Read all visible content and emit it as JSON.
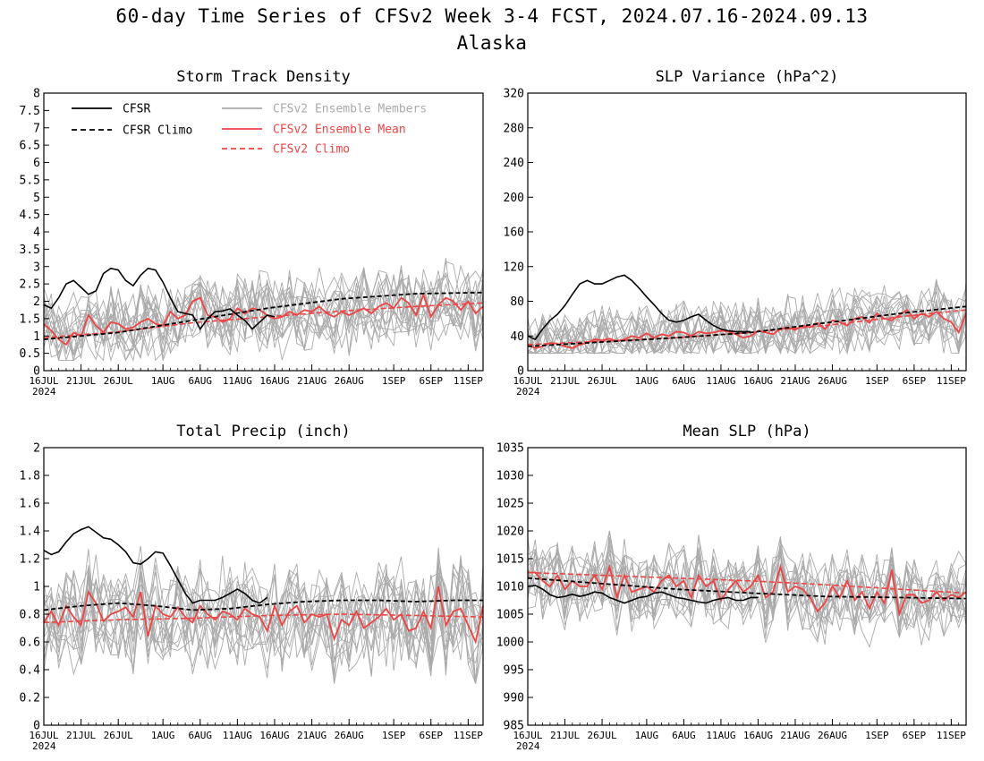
{
  "figure": {
    "title": "60-day Time Series of CFSv2 Week 3-4 FCST, 2024.07.16-2024.09.13",
    "subtitle": "Alaska"
  },
  "legend": [
    {
      "label": "CFSR",
      "color": "#000000",
      "dashed": false
    },
    {
      "label": "CFSR Climo",
      "color": "#000000",
      "dashed": true
    },
    {
      "label": "CFSv2 Ensemble Members",
      "color": "#aaaaaa",
      "dashed": false
    },
    {
      "label": "CFSv2 Ensemble Mean",
      "color": "#ee4444",
      "dashed": false
    },
    {
      "label": "CFSv2 Climo",
      "color": "#ee4444",
      "dashed": true
    }
  ],
  "x_axis": {
    "tick_days": [
      0,
      5,
      10,
      16,
      21,
      26,
      31,
      36,
      41,
      47,
      52,
      57
    ],
    "tick_labels": [
      "16JUL",
      "21JUL",
      "26JUL",
      "1AUG",
      "6AUG",
      "11AUG",
      "16AUG",
      "21AUG",
      "26AUG",
      "1SEP",
      "6SEP",
      "11SEP"
    ],
    "year_label": "2024"
  },
  "chart_data": [
    {
      "type": "line",
      "title": "Storm Track Density",
      "ylim": [
        0,
        8
      ],
      "yticks": [
        0,
        0.5,
        1,
        1.5,
        2,
        2.5,
        3,
        3.5,
        4,
        4.5,
        5,
        5.5,
        6,
        6.5,
        7,
        7.5,
        8
      ],
      "ytick_labels": [
        "0",
        "0.5",
        "1",
        "1.5",
        "2",
        "2.5",
        "3",
        "3.5",
        "4",
        "4.5",
        "5",
        "5.5",
        "6",
        "6.5",
        "7",
        "7.5",
        "8"
      ],
      "members_range": [
        0.3,
        3.6
      ],
      "series": [
        {
          "name": "CFSR",
          "x": [
            0,
            1,
            2,
            3,
            4,
            5,
            6,
            7,
            8,
            9,
            10,
            11,
            12,
            13,
            14,
            15,
            16,
            17,
            18,
            19,
            20,
            21,
            22,
            23,
            24,
            25,
            26,
            27,
            28,
            29,
            30,
            31
          ],
          "y": [
            1.9,
            1.8,
            2.1,
            2.5,
            2.6,
            2.4,
            2.2,
            2.3,
            2.8,
            2.95,
            2.9,
            2.6,
            2.45,
            2.75,
            2.95,
            2.9,
            2.55,
            2.1,
            1.7,
            1.65,
            1.6,
            1.2,
            1.5,
            1.7,
            1.72,
            1.78,
            1.6,
            1.45,
            1.2,
            1.4,
            1.6,
            1.55
          ]
        },
        {
          "name": "CFSR Climo",
          "x": [
            0,
            10,
            20,
            30,
            40,
            50,
            59
          ],
          "y": [
            0.9,
            1.1,
            1.45,
            1.8,
            2.07,
            2.22,
            2.25
          ]
        },
        {
          "name": "CFSv2 Ensemble Mean",
          "x": [
            0,
            1,
            2,
            3,
            4,
            5,
            6,
            7,
            8,
            9,
            10,
            11,
            12,
            13,
            14,
            15,
            16,
            17,
            18,
            19,
            20,
            21,
            22,
            23,
            24,
            25,
            26,
            27,
            28,
            29,
            30,
            31,
            32,
            33,
            34,
            35,
            36,
            37,
            38,
            39,
            40,
            41,
            42,
            43,
            44,
            45,
            46,
            47,
            48,
            49,
            50,
            51,
            52,
            53,
            54,
            55,
            56,
            57,
            58,
            59
          ],
          "y": [
            1.35,
            1.15,
            0.9,
            0.75,
            1.1,
            1.0,
            1.6,
            1.3,
            1.1,
            1.4,
            1.35,
            1.2,
            1.25,
            1.4,
            1.5,
            1.35,
            1.3,
            1.7,
            1.5,
            1.6,
            2.0,
            2.1,
            1.6,
            1.55,
            1.4,
            1.5,
            1.8,
            1.65,
            1.8,
            1.75,
            1.6,
            1.5,
            1.55,
            1.7,
            1.6,
            1.75,
            1.7,
            1.85,
            1.65,
            1.55,
            1.7,
            1.6,
            1.7,
            1.8,
            1.65,
            1.85,
            1.95,
            1.8,
            2.1,
            1.95,
            1.6,
            2.2,
            1.55,
            1.9,
            2.1,
            2.0,
            1.75,
            2.0,
            1.65,
            1.85
          ]
        },
        {
          "name": "CFSv2 Climo",
          "x": [
            0,
            10,
            20,
            30,
            40,
            50,
            59
          ],
          "y": [
            0.95,
            1.12,
            1.38,
            1.55,
            1.72,
            1.85,
            1.95
          ]
        }
      ]
    },
    {
      "type": "line",
      "title": "SLP Variance (hPa^2)",
      "ylim": [
        0,
        320
      ],
      "yticks": [
        0,
        40,
        80,
        120,
        160,
        200,
        240,
        280,
        320
      ],
      "ytick_labels": [
        "0",
        "40",
        "80",
        "120",
        "160",
        "200",
        "240",
        "280",
        "320"
      ],
      "members_range": [
        20,
        128
      ],
      "series": [
        {
          "name": "CFSR",
          "x": [
            0,
            1,
            2,
            3,
            4,
            5,
            6,
            7,
            8,
            9,
            10,
            11,
            12,
            13,
            14,
            15,
            16,
            17,
            18,
            19,
            20,
            21,
            22,
            23,
            24,
            25,
            26,
            27,
            28,
            29,
            30
          ],
          "y": [
            40,
            36,
            48,
            58,
            65,
            75,
            88,
            100,
            104,
            100,
            100,
            104,
            108,
            110,
            104,
            95,
            85,
            76,
            66,
            58,
            56,
            58,
            62,
            65,
            58,
            52,
            48,
            46,
            45,
            45,
            45
          ]
        },
        {
          "name": "CFSR Climo",
          "x": [
            0,
            10,
            20,
            30,
            40,
            50,
            59
          ],
          "y": [
            28,
            33,
            38,
            44,
            55,
            66,
            74
          ]
        },
        {
          "name": "CFSv2 Ensemble Mean",
          "x": [
            0,
            1,
            2,
            3,
            4,
            5,
            6,
            7,
            8,
            9,
            10,
            11,
            12,
            13,
            14,
            15,
            16,
            17,
            18,
            19,
            20,
            21,
            22,
            23,
            24,
            25,
            26,
            27,
            28,
            29,
            30,
            31,
            32,
            33,
            34,
            35,
            36,
            37,
            38,
            39,
            40,
            41,
            42,
            43,
            44,
            45,
            46,
            47,
            48,
            49,
            50,
            51,
            52,
            53,
            54,
            55,
            56,
            57,
            58,
            59
          ],
          "y": [
            30,
            26,
            28,
            32,
            31,
            28,
            26,
            30,
            32,
            36,
            35,
            37,
            34,
            36,
            40,
            38,
            43,
            38,
            42,
            40,
            45,
            44,
            40,
            45,
            43,
            44,
            46,
            45,
            42,
            38,
            40,
            46,
            44,
            42,
            48,
            50,
            47,
            52,
            50,
            55,
            48,
            58,
            56,
            52,
            60,
            62,
            55,
            66,
            60,
            58,
            64,
            70,
            60,
            66,
            62,
            68,
            60,
            56,
            44,
            66
          ]
        },
        {
          "name": "CFSv2 Climo",
          "x": [
            0,
            10,
            20,
            30,
            40,
            50,
            59
          ],
          "y": [
            30,
            34,
            38,
            44,
            52,
            62,
            70
          ]
        }
      ]
    },
    {
      "type": "line",
      "title": "Total Precip (inch)",
      "ylim": [
        0,
        2
      ],
      "yticks": [
        0,
        0.2,
        0.4,
        0.6,
        0.8,
        1,
        1.2,
        1.4,
        1.6,
        1.8,
        2
      ],
      "ytick_labels": [
        "0",
        "0.2",
        "0.4",
        "0.6",
        "0.8",
        "1",
        "1.2",
        "1.4",
        "1.6",
        "1.8",
        "2"
      ],
      "members_range": [
        0.3,
        1.38
      ],
      "series": [
        {
          "name": "CFSR",
          "x": [
            0,
            1,
            2,
            3,
            4,
            5,
            6,
            7,
            8,
            9,
            10,
            11,
            12,
            13,
            14,
            15,
            16,
            17,
            18,
            19,
            20,
            21,
            22,
            23,
            24,
            25,
            26,
            27,
            28,
            29,
            30
          ],
          "y": [
            1.26,
            1.23,
            1.25,
            1.32,
            1.38,
            1.41,
            1.43,
            1.39,
            1.35,
            1.34,
            1.3,
            1.25,
            1.17,
            1.16,
            1.2,
            1.25,
            1.24,
            1.15,
            1.05,
            0.95,
            0.88,
            0.9,
            0.9,
            0.9,
            0.92,
            0.95,
            0.98,
            0.95,
            0.9,
            0.88,
            0.92
          ]
        },
        {
          "name": "CFSR Climo",
          "x": [
            0,
            5,
            10,
            15,
            20,
            25,
            30,
            35,
            40,
            45,
            50,
            55,
            59
          ],
          "y": [
            0.83,
            0.86,
            0.88,
            0.86,
            0.83,
            0.84,
            0.87,
            0.89,
            0.9,
            0.9,
            0.89,
            0.9,
            0.9
          ]
        },
        {
          "name": "CFSv2 Ensemble Mean",
          "x": [
            0,
            1,
            2,
            3,
            4,
            5,
            6,
            7,
            8,
            9,
            10,
            11,
            12,
            13,
            14,
            15,
            16,
            17,
            18,
            19,
            20,
            21,
            22,
            23,
            24,
            25,
            26,
            27,
            28,
            29,
            30,
            31,
            32,
            33,
            34,
            35,
            36,
            37,
            38,
            39,
            40,
            41,
            42,
            43,
            44,
            45,
            46,
            47,
            48,
            49,
            50,
            51,
            52,
            53,
            54,
            55,
            56,
            57,
            58,
            59
          ],
          "y": [
            0.74,
            0.82,
            0.72,
            0.86,
            0.78,
            0.72,
            0.96,
            0.88,
            0.75,
            0.8,
            0.82,
            0.85,
            0.78,
            0.96,
            0.64,
            0.86,
            0.8,
            0.78,
            0.85,
            0.78,
            0.74,
            0.86,
            0.8,
            0.76,
            0.82,
            0.8,
            0.76,
            0.84,
            0.8,
            0.78,
            0.68,
            0.86,
            0.72,
            0.82,
            0.86,
            0.74,
            0.8,
            0.78,
            0.8,
            0.62,
            0.76,
            0.72,
            0.82,
            0.7,
            0.74,
            0.78,
            0.84,
            0.76,
            0.8,
            0.68,
            0.7,
            0.82,
            0.7,
            1.0,
            0.72,
            0.82,
            0.84,
            0.72,
            0.6,
            0.86
          ]
        },
        {
          "name": "CFSv2 Climo",
          "x": [
            0,
            10,
            20,
            30,
            40,
            50,
            59
          ],
          "y": [
            0.74,
            0.76,
            0.77,
            0.79,
            0.8,
            0.79,
            0.78
          ]
        }
      ]
    },
    {
      "type": "line",
      "title": "Mean SLP (hPa)",
      "ylim": [
        985,
        1035
      ],
      "yticks": [
        985,
        990,
        995,
        1000,
        1005,
        1010,
        1015,
        1020,
        1025,
        1030,
        1035
      ],
      "ytick_labels": [
        "985",
        "990",
        "995",
        "1000",
        "1005",
        "1010",
        "1015",
        "1020",
        "1025",
        "1030",
        "1035"
      ],
      "members_range": [
        999,
        1020
      ],
      "series": [
        {
          "name": "CFSR",
          "x": [
            0,
            1,
            2,
            3,
            4,
            5,
            6,
            7,
            8,
            9,
            10,
            11,
            12,
            13,
            14,
            15,
            16,
            17,
            18,
            19,
            20,
            21,
            22,
            23,
            24,
            25,
            26,
            27,
            28,
            29,
            30,
            31
          ],
          "y": [
            1010,
            1010.2,
            1009.5,
            1008.5,
            1008,
            1008.2,
            1008.6,
            1008.2,
            1008.5,
            1009,
            1008.8,
            1008,
            1007.5,
            1007,
            1007.5,
            1008,
            1008.2,
            1008.8,
            1009,
            1008.5,
            1008,
            1007.8,
            1007.5,
            1007.2,
            1007,
            1007.5,
            1007.8,
            1008,
            1007.5,
            1007.5,
            1008,
            1008
          ]
        },
        {
          "name": "CFSR Climo",
          "x": [
            0,
            10,
            20,
            30,
            40,
            50,
            59
          ],
          "y": [
            1011.5,
            1010.5,
            1009.5,
            1008.8,
            1008.2,
            1008,
            1007.8
          ]
        },
        {
          "name": "CFSv2 Ensemble Mean",
          "x": [
            0,
            1,
            2,
            3,
            4,
            5,
            6,
            7,
            8,
            9,
            10,
            11,
            12,
            13,
            14,
            15,
            16,
            17,
            18,
            19,
            20,
            21,
            22,
            23,
            24,
            25,
            26,
            27,
            28,
            29,
            30,
            31,
            32,
            33,
            34,
            35,
            36,
            37,
            38,
            39,
            40,
            41,
            42,
            43,
            44,
            45,
            46,
            47,
            48,
            49,
            50,
            51,
            52,
            53,
            54,
            55,
            56,
            57,
            58,
            59
          ],
          "y": [
            1012.5,
            1012.5,
            1011,
            1010,
            1012,
            1009.5,
            1011,
            1010,
            1010,
            1012,
            1009.5,
            1013.5,
            1008,
            1012,
            1009,
            1009.5,
            1010,
            1009,
            1011,
            1012,
            1010,
            1011,
            1008,
            1012,
            1010,
            1011,
            1007.5,
            1009.5,
            1011,
            1009,
            1010,
            1012,
            1008,
            1009,
            1013.5,
            1009,
            1010,
            1009.5,
            1008,
            1005.5,
            1007,
            1010,
            1008,
            1011,
            1007.5,
            1009,
            1006,
            1009,
            1007,
            1013,
            1005,
            1008.5,
            1008.5,
            1007,
            1007.5,
            1009,
            1007.5,
            1008.5,
            1008,
            1009
          ]
        },
        {
          "name": "CFSv2 Climo",
          "x": [
            0,
            10,
            20,
            30,
            40,
            50,
            59
          ],
          "y": [
            1012.5,
            1012,
            1011.5,
            1011,
            1010.3,
            1009.5,
            1008.8
          ]
        }
      ]
    }
  ]
}
